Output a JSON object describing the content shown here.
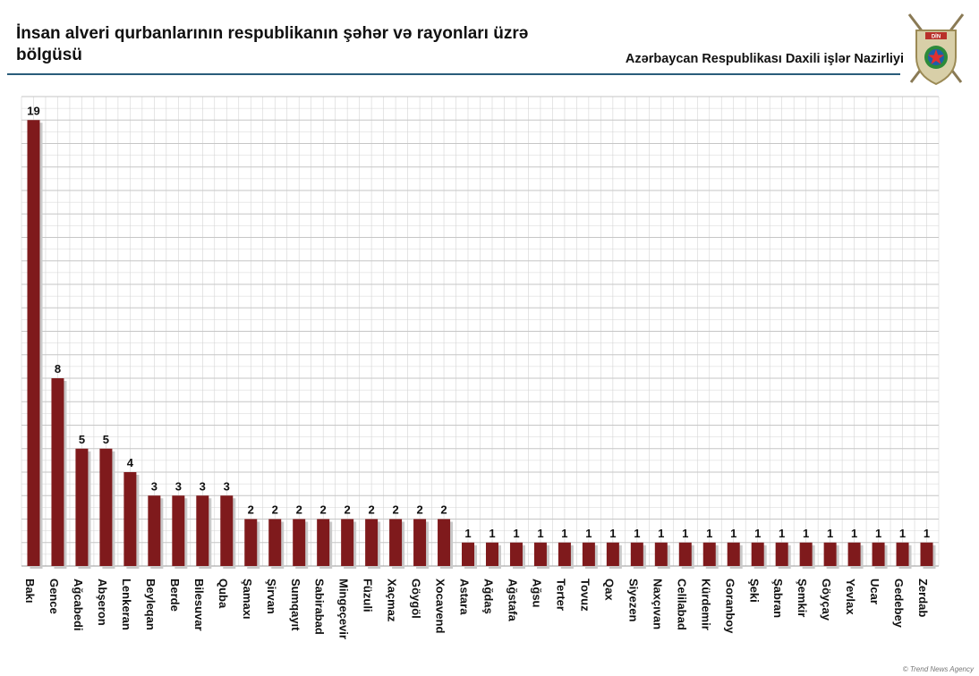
{
  "header": {
    "title": "İnsan alveri qurbanlarının respublikanın şəhər və rayonları üzrə bölgüsü",
    "ministry": "Azərbaycan Respublikası Daxili işlər Nazirliyi",
    "emblem_text": "DİN"
  },
  "watermark": "© Trend News Agency",
  "colors": {
    "bar": "#7f1a1c",
    "bar_shadow": "#c9c9c9",
    "rule": "#2a5c7a",
    "grid": "#d4d4d4"
  },
  "chart_data": {
    "type": "bar",
    "title": "İnsan alveri qurbanlarının respublikanın şəhər və rayonları üzrə bölgüsü",
    "xlabel": "",
    "ylabel": "",
    "ylim": [
      0,
      20
    ],
    "grid": true,
    "categories": [
      "Bakı",
      "Gence",
      "Ağcabedi",
      "Abşeron",
      "Lenkeran",
      "Beyleqan",
      "Berde",
      "Bilesuvar",
      "Quba",
      "Şamaxı",
      "Şirvan",
      "Sumqayıt",
      "Sabirabad",
      "Mingeçevir",
      "Füzuli",
      "Xaçmaz",
      "Göygöl",
      "Xocavend",
      "Astara",
      "Ağdaş",
      "Ağstafa",
      "Ağsu",
      "Terter",
      "Tovuz",
      "Qax",
      "Siyezen",
      "Naxçıvan",
      "Celilabad",
      "Kürdemir",
      "Goranboy",
      "Şeki",
      "Şabran",
      "Şemkir",
      "Göyçay",
      "Yevlax",
      "Ucar",
      "Gedebey",
      "Zerdab"
    ],
    "values": [
      19,
      8,
      5,
      5,
      4,
      3,
      3,
      3,
      3,
      2,
      2,
      2,
      2,
      2,
      2,
      2,
      2,
      2,
      1,
      1,
      1,
      1,
      1,
      1,
      1,
      1,
      1,
      1,
      1,
      1,
      1,
      1,
      1,
      1,
      1,
      1,
      1,
      1
    ]
  }
}
